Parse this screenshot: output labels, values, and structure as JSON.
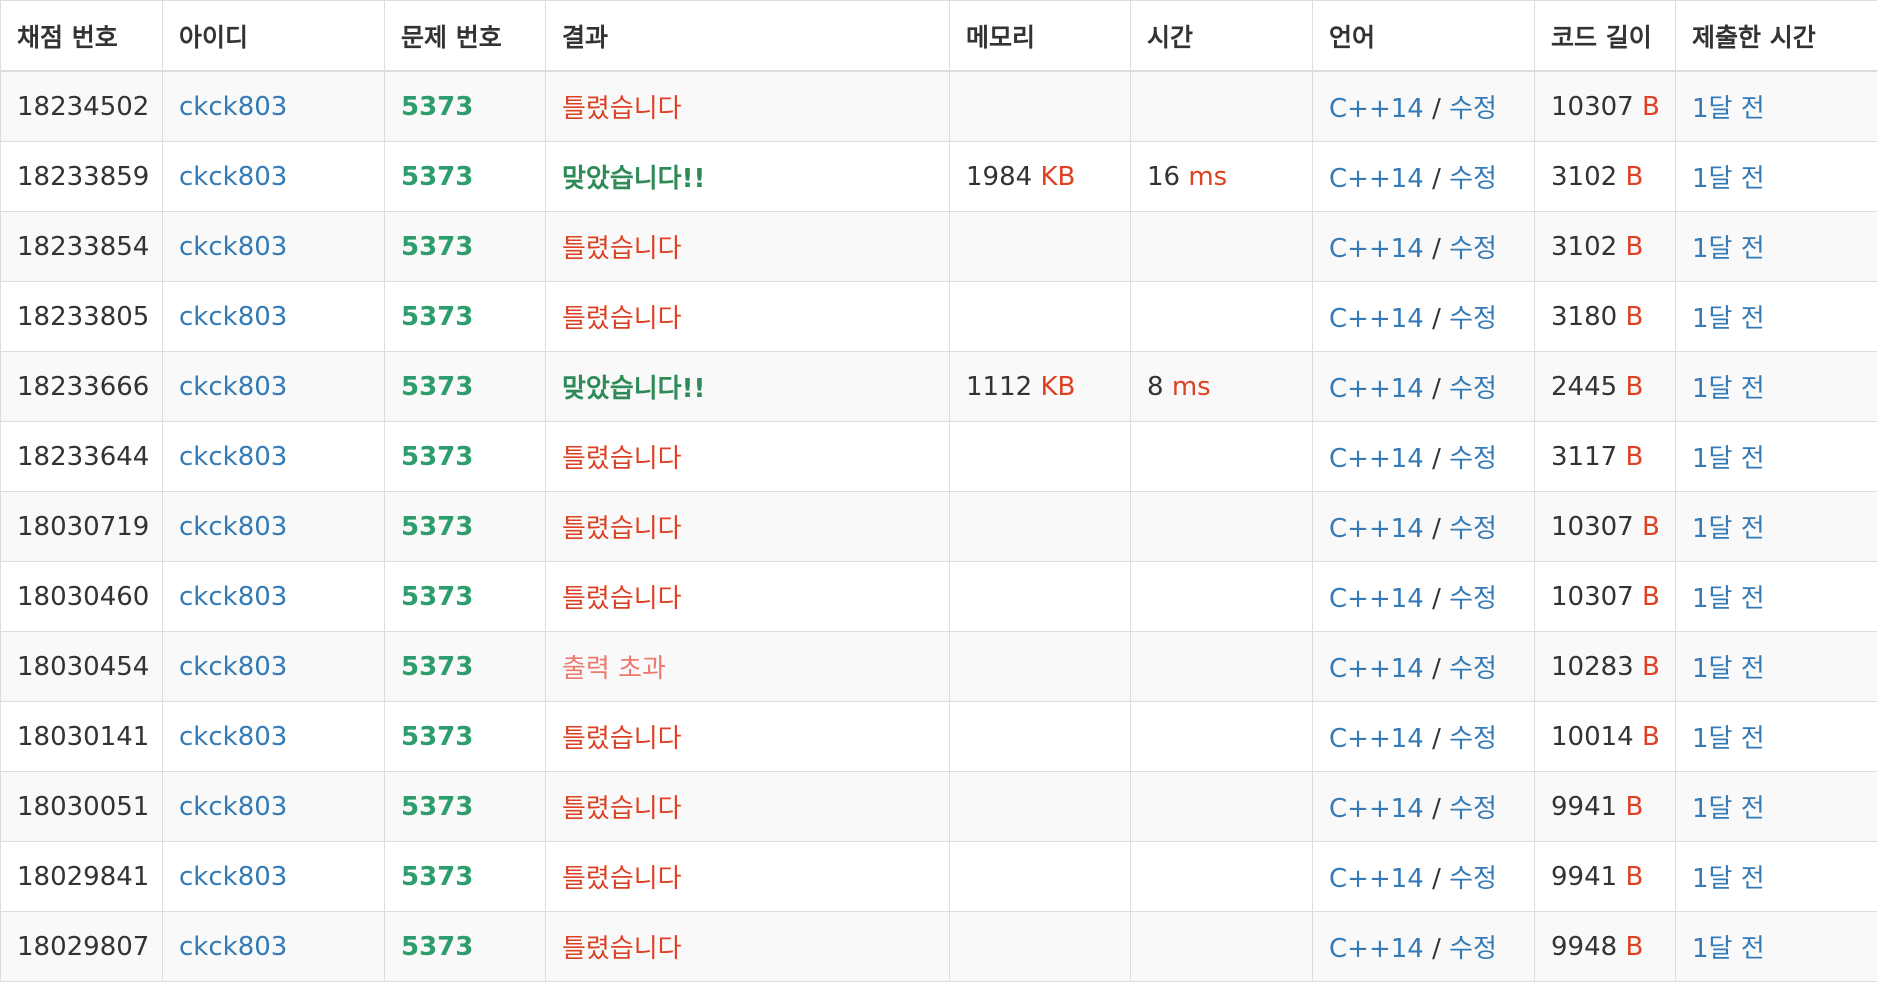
{
  "headers": [
    "채점 번호",
    "아이디",
    "문제 번호",
    "결과",
    "메모리",
    "시간",
    "언어",
    "코드 길이",
    "제출한 시간"
  ],
  "units": {
    "memory": "KB",
    "time": "ms",
    "code": "B"
  },
  "separator": "/",
  "edit_label": "수정",
  "colors": {
    "link": "#337ab7",
    "problem": "#2e9d6e",
    "wrong": "#dd4124",
    "accepted": "#2e8b57",
    "output_exceeded": "#ec7a6e",
    "unit": "#dd4124"
  },
  "rows": [
    {
      "id": "18234502",
      "user": "ckck803",
      "problem": "5373",
      "result": "틀렸습니다",
      "result_type": "wa",
      "memory": "",
      "time": "",
      "lang": "C++14",
      "code_len": "10307",
      "submitted": "1달 전"
    },
    {
      "id": "18233859",
      "user": "ckck803",
      "problem": "5373",
      "result": "맞았습니다!!",
      "result_type": "ac",
      "memory": "1984",
      "time": "16",
      "lang": "C++14",
      "code_len": "3102",
      "submitted": "1달 전"
    },
    {
      "id": "18233854",
      "user": "ckck803",
      "problem": "5373",
      "result": "틀렸습니다",
      "result_type": "wa",
      "memory": "",
      "time": "",
      "lang": "C++14",
      "code_len": "3102",
      "submitted": "1달 전"
    },
    {
      "id": "18233805",
      "user": "ckck803",
      "problem": "5373",
      "result": "틀렸습니다",
      "result_type": "wa",
      "memory": "",
      "time": "",
      "lang": "C++14",
      "code_len": "3180",
      "submitted": "1달 전"
    },
    {
      "id": "18233666",
      "user": "ckck803",
      "problem": "5373",
      "result": "맞았습니다!!",
      "result_type": "ac",
      "memory": "1112",
      "time": "8",
      "lang": "C++14",
      "code_len": "2445",
      "submitted": "1달 전"
    },
    {
      "id": "18233644",
      "user": "ckck803",
      "problem": "5373",
      "result": "틀렸습니다",
      "result_type": "wa",
      "memory": "",
      "time": "",
      "lang": "C++14",
      "code_len": "3117",
      "submitted": "1달 전"
    },
    {
      "id": "18030719",
      "user": "ckck803",
      "problem": "5373",
      "result": "틀렸습니다",
      "result_type": "wa",
      "memory": "",
      "time": "",
      "lang": "C++14",
      "code_len": "10307",
      "submitted": "1달 전"
    },
    {
      "id": "18030460",
      "user": "ckck803",
      "problem": "5373",
      "result": "틀렸습니다",
      "result_type": "wa",
      "memory": "",
      "time": "",
      "lang": "C++14",
      "code_len": "10307",
      "submitted": "1달 전"
    },
    {
      "id": "18030454",
      "user": "ckck803",
      "problem": "5373",
      "result": "출력 초과",
      "result_type": "ole",
      "memory": "",
      "time": "",
      "lang": "C++14",
      "code_len": "10283",
      "submitted": "1달 전"
    },
    {
      "id": "18030141",
      "user": "ckck803",
      "problem": "5373",
      "result": "틀렸습니다",
      "result_type": "wa",
      "memory": "",
      "time": "",
      "lang": "C++14",
      "code_len": "10014",
      "submitted": "1달 전"
    },
    {
      "id": "18030051",
      "user": "ckck803",
      "problem": "5373",
      "result": "틀렸습니다",
      "result_type": "wa",
      "memory": "",
      "time": "",
      "lang": "C++14",
      "code_len": "9941",
      "submitted": "1달 전"
    },
    {
      "id": "18029841",
      "user": "ckck803",
      "problem": "5373",
      "result": "틀렸습니다",
      "result_type": "wa",
      "memory": "",
      "time": "",
      "lang": "C++14",
      "code_len": "9941",
      "submitted": "1달 전"
    },
    {
      "id": "18029807",
      "user": "ckck803",
      "problem": "5373",
      "result": "틀렸습니다",
      "result_type": "wa",
      "memory": "",
      "time": "",
      "lang": "C++14",
      "code_len": "9948",
      "submitted": "1달 전"
    }
  ]
}
